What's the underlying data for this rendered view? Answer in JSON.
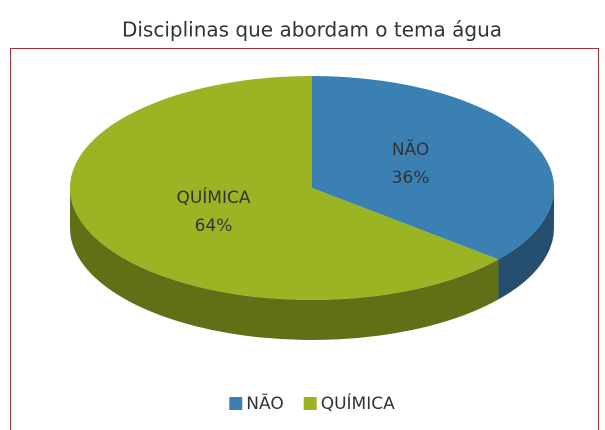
{
  "chart_data": {
    "type": "pie",
    "title": "Disciplinas que abordam o tema água",
    "categories": [
      "NÃO",
      "QUÍMICA"
    ],
    "values": [
      36,
      64
    ],
    "value_labels": [
      "36%",
      "64%"
    ],
    "colors": [
      "#3b80b3",
      "#9bb424"
    ],
    "legend": "bottom"
  }
}
